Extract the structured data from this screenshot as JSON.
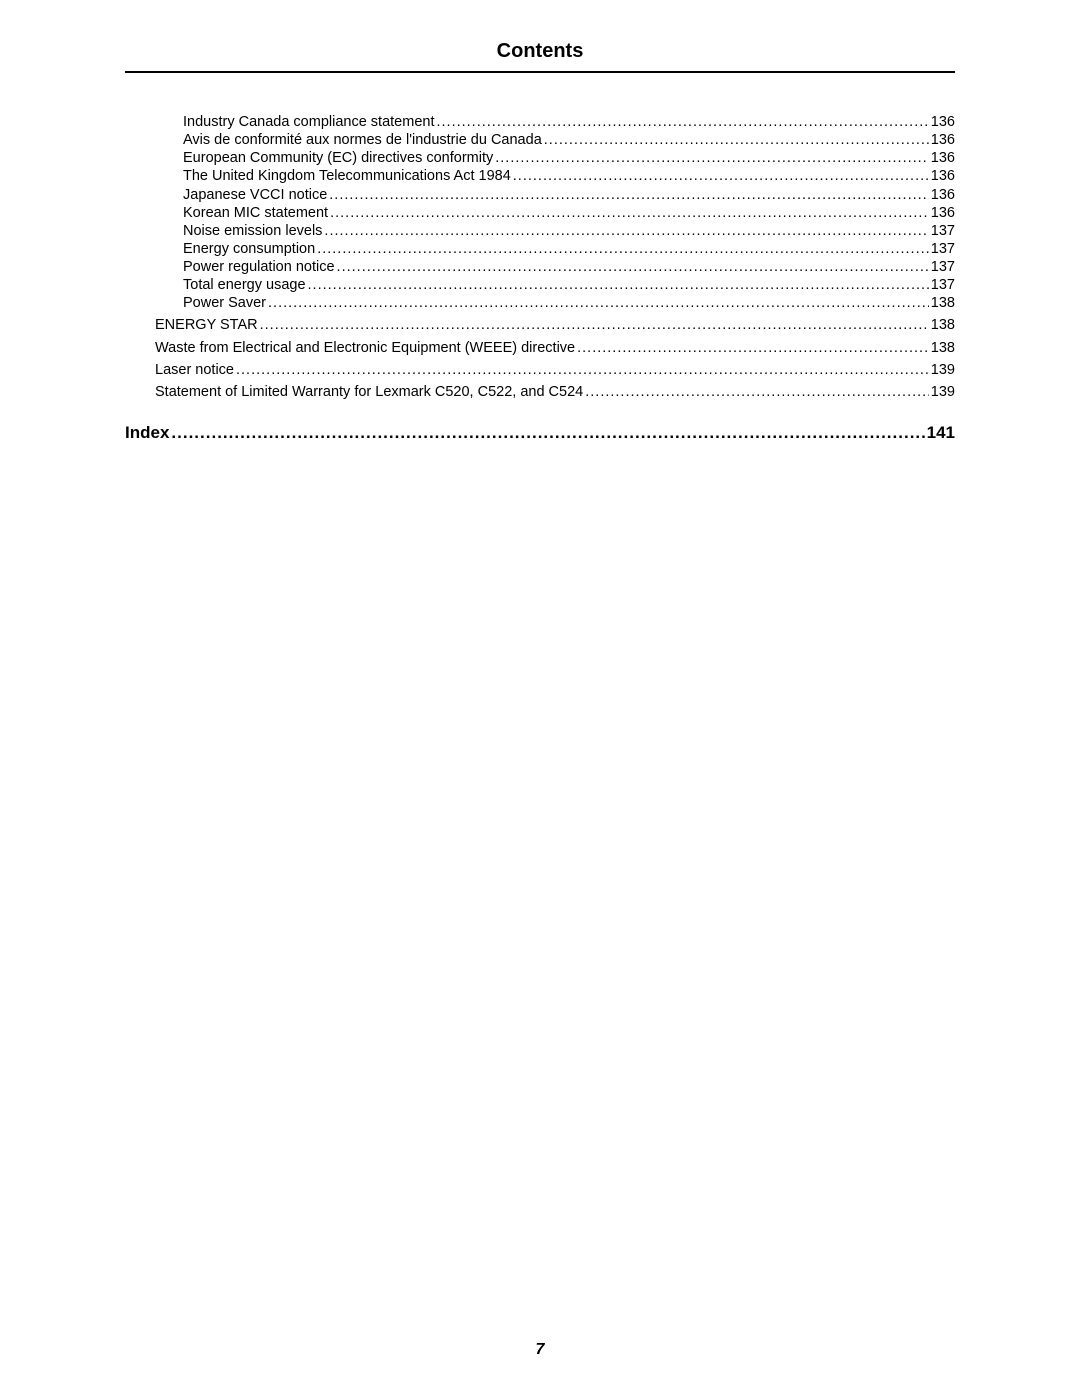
{
  "title": "Contents",
  "toc": [
    {
      "level": 3,
      "label": "Industry Canada compliance statement",
      "page": "136"
    },
    {
      "level": 3,
      "label": "Avis de conformité aux normes de l'industrie du Canada",
      "page": "136"
    },
    {
      "level": 3,
      "label": "European Community (EC) directives conformity",
      "page": "136"
    },
    {
      "level": 3,
      "label": "The United Kingdom Telecommunications Act 1984",
      "page": "136"
    },
    {
      "level": 3,
      "label": "Japanese VCCI notice",
      "page": "136"
    },
    {
      "level": 3,
      "label": "Korean MIC statement",
      "page": "136"
    },
    {
      "level": 3,
      "label": "Noise emission levels",
      "page": "137"
    },
    {
      "level": 3,
      "label": "Energy consumption",
      "page": "137"
    },
    {
      "level": 3,
      "label": "Power regulation notice",
      "page": "137"
    },
    {
      "level": 3,
      "label": "Total energy usage",
      "page": "137"
    },
    {
      "level": 3,
      "label": "Power Saver",
      "page": "138"
    },
    {
      "gap": true
    },
    {
      "level": 2,
      "label": "ENERGY STAR",
      "page": "138"
    },
    {
      "gap": true
    },
    {
      "level": 2,
      "label": "Waste from Electrical and Electronic Equipment (WEEE) directive",
      "page": "138"
    },
    {
      "gap": true
    },
    {
      "level": 2,
      "label": "Laser notice",
      "page": "139"
    },
    {
      "gap": true
    },
    {
      "level": 2,
      "label": "Statement of Limited Warranty for Lexmark C520, C522, and C524",
      "page": "139"
    }
  ],
  "index": {
    "label": "Index",
    "page": "141"
  },
  "pageNumber": "7"
}
